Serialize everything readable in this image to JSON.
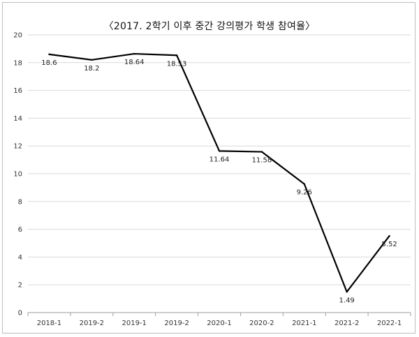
{
  "chart_data": {
    "type": "line",
    "title": "〈2017. 2학기 이후 중간 강의평가 학생 참여율〉",
    "xlabel": "",
    "ylabel": "",
    "categories": [
      "2018-1",
      "2019-2",
      "2019-1",
      "2019-2",
      "2020-1",
      "2020-2",
      "2021-1",
      "2021-2",
      "2022-1"
    ],
    "series": [
      {
        "values": [
          18.6,
          18.2,
          18.64,
          18.53,
          11.64,
          11.58,
          9.26,
          1.49,
          5.52
        ],
        "labels": [
          "18.6",
          "18.2",
          "18.64",
          "18.53",
          "11.64",
          "11.58",
          "9.26",
          "1.49",
          "5.52"
        ]
      }
    ],
    "ylim": [
      0,
      20
    ],
    "yticks": [
      "0",
      "2",
      "4",
      "6",
      "8",
      "10",
      "12",
      "14",
      "16",
      "18",
      "20"
    ],
    "grid": true,
    "line_color": "#000000",
    "grid_color": "#d9d9d9",
    "legend": "none"
  }
}
